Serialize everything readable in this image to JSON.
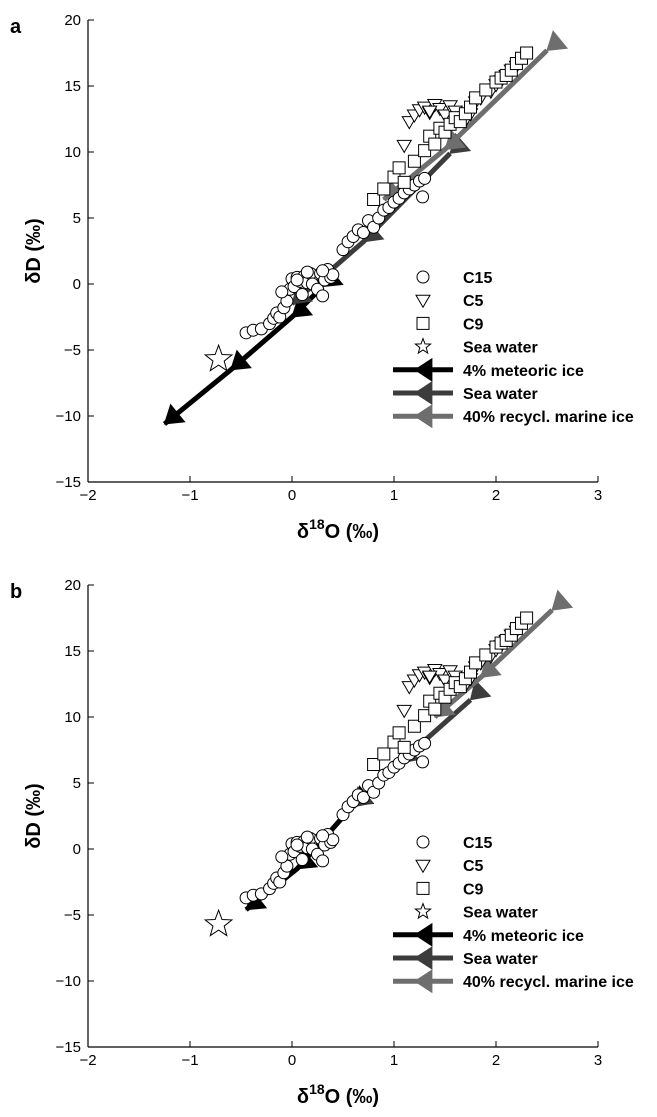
{
  "chart_data": [
    {
      "type": "scatter",
      "panel_label": "a",
      "xlabel_prefix": "δ",
      "xlabel_sup": "18",
      "xlabel_suffix": "O (‰)",
      "ylabel": "δD (‰)",
      "xlim": [
        -2,
        3
      ],
      "ylim": [
        -15,
        20
      ],
      "xticks": [
        "−2",
        "−1",
        "0",
        "1",
        "2",
        "3"
      ],
      "yticks": [
        "20",
        "15",
        "10",
        "5",
        "0",
        "−5",
        "−10",
        "−15"
      ],
      "legend_position": "lower-right",
      "legend": [
        "C15",
        "C5",
        "C9",
        "Sea water",
        "4% meteoric ice",
        "Sea water",
        "40% recycl. marine ice"
      ],
      "series": [
        {
          "name": "C15",
          "marker": "circle",
          "x": [
            -0.45,
            -0.38,
            -0.3,
            -0.22,
            -0.18,
            -0.15,
            -0.12,
            -0.08,
            -0.05,
            -0.02,
            0.0,
            0.02,
            0.05,
            0.08,
            0.1,
            0.12,
            0.15,
            0.18,
            0.2,
            0.25,
            0.28,
            0.3,
            0.32,
            0.35,
            0.38,
            0.4,
            0.5,
            0.55,
            0.6,
            0.65,
            0.7,
            0.75,
            0.8,
            0.85,
            0.9,
            0.95,
            1.0,
            1.05,
            1.1,
            1.15,
            1.2,
            1.25,
            1.3,
            -0.1,
            0.05,
            0.15,
            0.3,
            1.28
          ],
          "y": [
            -3.7,
            -3.5,
            -3.4,
            -3.0,
            -2.6,
            -2.2,
            -2.5,
            -1.8,
            -1.3,
            -0.4,
            0.4,
            -0.2,
            0.5,
            0.2,
            -0.8,
            0.6,
            0.1,
            0.8,
            0.0,
            -0.4,
            0.8,
            -0.9,
            0.3,
            1.1,
            0.5,
            0.7,
            2.6,
            3.2,
            3.6,
            4.1,
            3.9,
            4.8,
            4.3,
            5.0,
            5.6,
            5.8,
            6.2,
            6.5,
            6.9,
            7.2,
            7.5,
            7.8,
            8.0,
            -0.6,
            0.3,
            0.9,
            1.0,
            6.6
          ]
        },
        {
          "name": "C5",
          "marker": "triangle-down",
          "x": [
            1.15,
            1.2,
            1.25,
            1.3,
            1.35,
            1.4,
            1.45,
            1.5,
            1.55,
            1.6,
            1.7,
            1.75,
            1.8,
            1.85,
            1.95,
            2.0,
            2.05,
            2.1,
            2.15,
            2.2,
            1.1,
            1.35
          ],
          "y": [
            12.3,
            12.8,
            13.2,
            13.4,
            13.0,
            13.6,
            13.3,
            12.8,
            13.5,
            13.1,
            12.4,
            12.9,
            13.8,
            14.1,
            14.6,
            15.1,
            15.4,
            15.8,
            16.2,
            16.5,
            10.5,
            13.1
          ]
        },
        {
          "name": "C9",
          "marker": "square",
          "x": [
            0.8,
            0.9,
            1.0,
            1.05,
            1.1,
            1.2,
            1.3,
            1.35,
            1.4,
            1.45,
            1.5,
            1.55,
            1.6,
            1.65,
            1.7,
            1.75,
            1.8,
            1.9,
            2.0,
            2.05,
            2.1,
            2.15,
            2.2,
            2.25,
            2.3
          ],
          "y": [
            6.4,
            7.2,
            8.1,
            8.8,
            7.7,
            9.3,
            10.1,
            11.2,
            10.6,
            11.8,
            11.5,
            12.1,
            12.6,
            12.3,
            12.9,
            13.4,
            14.1,
            14.7,
            15.3,
            15.6,
            15.8,
            16.2,
            16.7,
            17.1,
            17.5
          ]
        },
        {
          "name": "Sea water",
          "marker": "star",
          "x": [
            -0.72
          ],
          "y": [
            -5.7
          ]
        },
        {
          "name": "4% meteoric ice",
          "color": "#000000",
          "x": [
            -1.25,
            -0.6,
            0.0,
            0.3
          ],
          "y": [
            -10.6,
            -6.5,
            -2.5,
            -0.2
          ]
        },
        {
          "name": "Sea water",
          "color": "#3c3c3c",
          "x": [
            0.0,
            0.7,
            1.55
          ],
          "y": [
            -1.5,
            3.2,
            9.9
          ]
        },
        {
          "name": "40% recycl. marine ice",
          "color": "#6e6e6e",
          "x": [
            0.9,
            1.5,
            2.5
          ],
          "y": [
            6.4,
            10.2,
            17.7
          ]
        }
      ]
    },
    {
      "type": "scatter",
      "panel_label": "b",
      "xlabel_prefix": "δ",
      "xlabel_sup": "18",
      "xlabel_suffix": "O (‰)",
      "ylabel": "δD (‰)",
      "xlim": [
        -2,
        3
      ],
      "ylim": [
        -15,
        20
      ],
      "xticks": [
        "−2",
        "−1",
        "0",
        "1",
        "2",
        "3"
      ],
      "yticks": [
        "20",
        "15",
        "10",
        "5",
        "0",
        "−5",
        "−10",
        "−15"
      ],
      "legend_position": "lower-right",
      "legend": [
        "C15",
        "C5",
        "C9",
        "Sea water",
        "4% meteoric ice",
        "Sea water",
        "40% recycl. marine ice"
      ],
      "series": [
        {
          "name": "C15",
          "marker": "circle",
          "x": [
            -0.45,
            -0.38,
            -0.3,
            -0.22,
            -0.18,
            -0.15,
            -0.12,
            -0.08,
            -0.05,
            -0.02,
            0.0,
            0.02,
            0.05,
            0.08,
            0.1,
            0.12,
            0.15,
            0.18,
            0.2,
            0.25,
            0.28,
            0.3,
            0.32,
            0.35,
            0.38,
            0.4,
            0.5,
            0.55,
            0.6,
            0.65,
            0.7,
            0.75,
            0.8,
            0.85,
            0.9,
            0.95,
            1.0,
            1.05,
            1.1,
            1.15,
            1.2,
            1.25,
            1.3,
            -0.1,
            0.05,
            0.15,
            0.3,
            1.28
          ],
          "y": [
            -3.7,
            -3.5,
            -3.4,
            -3.0,
            -2.6,
            -2.2,
            -2.5,
            -1.8,
            -1.3,
            -0.4,
            0.4,
            -0.2,
            0.5,
            0.2,
            -0.8,
            0.6,
            0.1,
            0.8,
            0.0,
            -0.4,
            0.8,
            -0.9,
            0.3,
            1.1,
            0.5,
            0.7,
            2.6,
            3.2,
            3.6,
            4.1,
            3.9,
            4.8,
            4.3,
            5.0,
            5.6,
            5.8,
            6.2,
            6.5,
            6.9,
            7.2,
            7.5,
            7.8,
            8.0,
            -0.6,
            0.3,
            0.9,
            1.0,
            6.6
          ]
        },
        {
          "name": "C5",
          "marker": "triangle-down",
          "x": [
            1.15,
            1.2,
            1.25,
            1.3,
            1.35,
            1.4,
            1.45,
            1.5,
            1.55,
            1.6,
            1.7,
            1.75,
            1.8,
            1.85,
            1.95,
            2.0,
            2.05,
            2.1,
            2.15,
            2.2,
            1.1,
            1.35
          ],
          "y": [
            12.3,
            12.8,
            13.2,
            13.4,
            13.0,
            13.6,
            13.3,
            12.8,
            13.5,
            13.1,
            12.4,
            12.9,
            13.8,
            14.1,
            14.6,
            15.1,
            15.4,
            15.8,
            16.2,
            16.5,
            10.5,
            13.1
          ]
        },
        {
          "name": "C9",
          "marker": "square",
          "x": [
            0.8,
            0.9,
            1.0,
            1.05,
            1.1,
            1.2,
            1.3,
            1.35,
            1.4,
            1.45,
            1.5,
            1.55,
            1.6,
            1.65,
            1.7,
            1.75,
            1.8,
            1.9,
            2.0,
            2.05,
            2.1,
            2.15,
            2.2,
            2.25,
            2.3
          ],
          "y": [
            6.4,
            7.2,
            8.1,
            8.8,
            7.7,
            9.3,
            10.1,
            11.2,
            10.6,
            11.8,
            11.5,
            12.1,
            12.6,
            12.3,
            12.9,
            13.4,
            14.1,
            14.7,
            15.3,
            15.6,
            15.8,
            16.2,
            16.7,
            17.1,
            17.5
          ]
        },
        {
          "name": "Sea water",
          "marker": "star",
          "x": [
            -0.72
          ],
          "y": [
            -5.7
          ]
        },
        {
          "name": "4% meteoric ice",
          "color": "#000000",
          "x": [
            -0.45,
            0.05,
            0.6
          ],
          "y": [
            -4.6,
            -1.5,
            3.3
          ]
        },
        {
          "name": "Sea water",
          "color": "#3c3c3c",
          "x": [
            0.6,
            1.05,
            1.75
          ],
          "y": [
            3.2,
            6.5,
            11.3
          ]
        },
        {
          "name": "40% recycl. marine ice",
          "color": "#6e6e6e",
          "x": [
            1.4,
            1.85,
            2.55
          ],
          "y": [
            10.0,
            13.0,
            18.1
          ]
        }
      ]
    }
  ]
}
